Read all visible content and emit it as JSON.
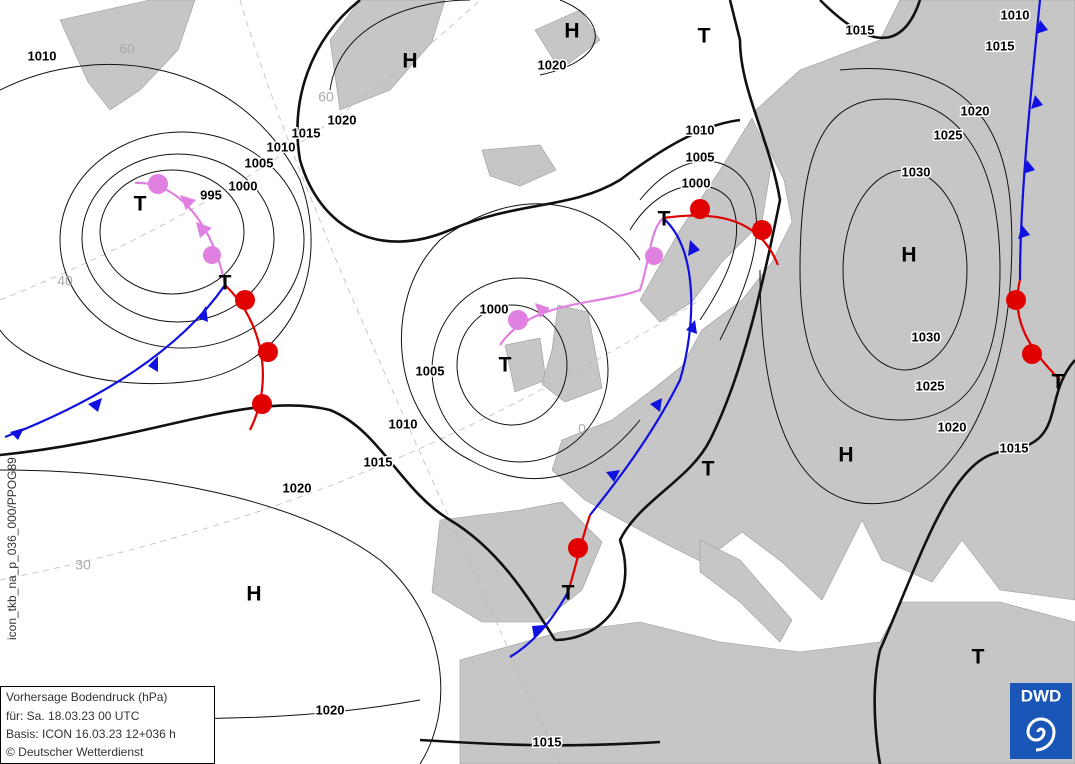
{
  "isobar_labels": [
    1010,
    1010,
    1015,
    1015,
    1020,
    1020,
    1015,
    1010,
    1005,
    1000,
    995,
    1010,
    1005,
    1000,
    1020,
    1025,
    1030,
    1030,
    1025,
    1020,
    1015,
    1000,
    1005,
    1010,
    1015,
    1020,
    1020,
    1015
  ],
  "systems": [
    "H",
    "H",
    "T",
    "T",
    "T",
    "T",
    "T",
    "T",
    "H",
    "H",
    "H",
    "T",
    "T",
    "T"
  ],
  "grid_labels": [
    "60",
    "60",
    "40",
    "30",
    "0"
  ],
  "info_box": {
    "title": "Vorhersage Bodendruck (hPa)",
    "valid": "für:  Sa. 18.03.23  00 UTC",
    "basis": "Basis: ICON  16.03.23 12+036 h",
    "copyright": "© Deutscher Wetterdienst"
  },
  "side_code": "icon_tkb_na_p_036_000/PPOG89",
  "logo": "DWD"
}
